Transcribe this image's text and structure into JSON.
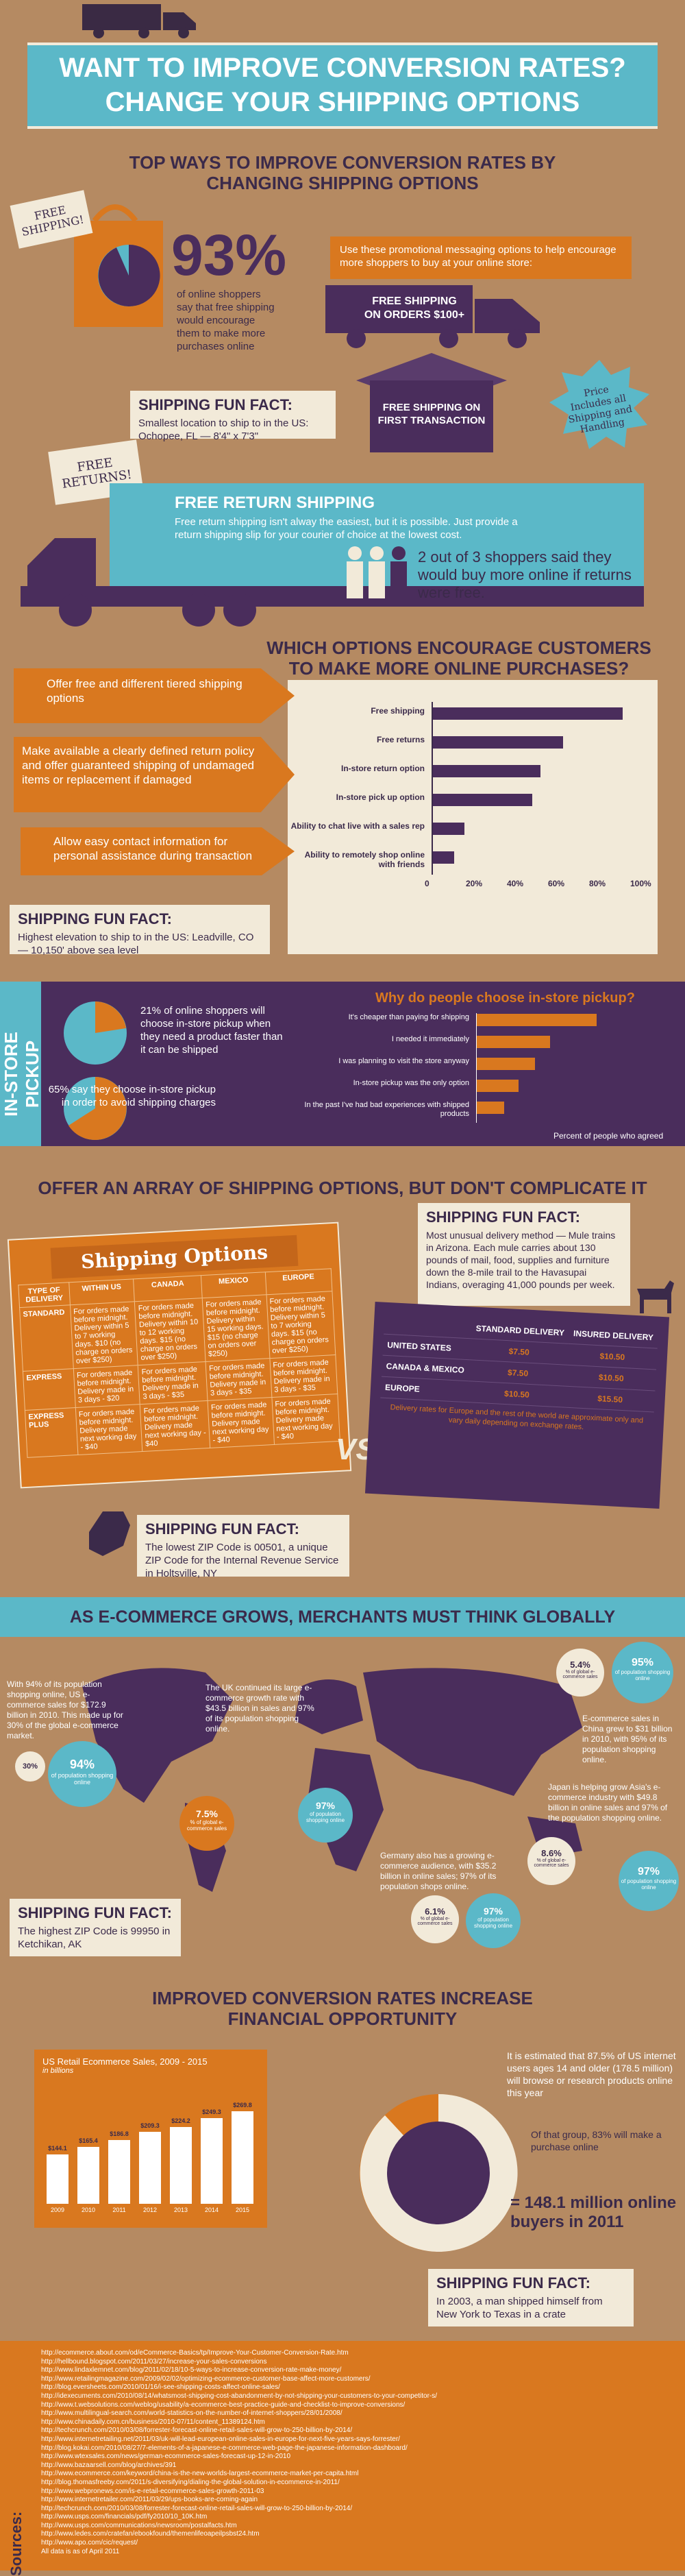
{
  "header": {
    "title_line1": "WANT TO IMPROVE CONVERSION RATES?",
    "title_line2": "CHANGE YOUR SHIPPING OPTIONS"
  },
  "top_ways": {
    "heading_line1": "TOP WAYS TO IMPROVE CONVERSION RATES BY",
    "heading_line2": "CHANGING SHIPPING OPTIONS",
    "free_shipping_tag": "FREE SHIPPING!",
    "stat_percent": "93%",
    "stat_text": "of online shoppers say that free shipping would encourage them to make more purchases online",
    "promo_intro": "Use these promotional messaging options to help encourage more shoppers to buy at your online store:",
    "truck_text": "FREE SHIPPING ON ORDERS $100+",
    "box_text": "FREE SHIPPING ON FIRST TRANSACTION",
    "price_includes": "Price Includes all Shipping and Handling"
  },
  "fact1": {
    "title": "SHIPPING FUN FACT:",
    "text": "Smallest location to ship to in the US: Ochopee, FL — 8'4\" x 7'3\""
  },
  "free_returns": {
    "tag": "FREE RETURNS!",
    "title": "FREE RETURN SHIPPING",
    "text": "Free return shipping isn't alway the easiest, but it is possible. Just provide a return shipping slip for your courier of choice at the lowest cost.",
    "stat": "2 out of 3 shoppers said they would buy more online if returns were free."
  },
  "options": {
    "heading_line1": "WHICH OPTIONS ENCOURAGE CUSTOMERS",
    "heading_line2": "TO MAKE MORE ONLINE PURCHASES?",
    "tips": [
      "Offer free and different tiered shipping options",
      "Make available a clearly defined return policy and offer guaranteed shipping of undamaged items or replacement if damaged",
      "Allow easy contact information for personal assistance during transaction"
    ]
  },
  "fact2": {
    "title": "SHIPPING FUN FACT:",
    "text": "Highest elevation to ship to in the US: Leadville, CO — 10,150' above sea level"
  },
  "instore": {
    "side_label": "IN-STORE PICKUP",
    "stat1": "21% of online shoppers will choose in-store pickup when they need a product faster than it can be shipped",
    "stat2": "65% say they choose in-store pickup in order to avoid shipping charges",
    "question": "Why do people choose in-store pickup?",
    "axis_title": "Percent of people who agreed"
  },
  "array": {
    "heading": "OFFER AN ARRAY OF SHIPPING OPTIONS, BUT DON'T COMPLICATE IT",
    "shipping_options_title": "Shipping Options",
    "cols": [
      "TYPE OF DELIVERY",
      "WITHIN US",
      "CANADA",
      "MEXICO",
      "EUROPE"
    ],
    "rows": [
      [
        "STANDARD",
        "For orders made before midnight. Delivery within 5 to 7 working days. $10 (no charge on orders over $250)",
        "For orders made before midnight. Delivery within 10 to 12 working days. $15 (no charge on orders over $250)",
        "For orders made before midnight. Delivery within 15 working days. $15 (no charge on orders over $250)",
        "For orders made before midnight. Delivery within 5 to 7 working days. $15 (no charge on orders over $250)"
      ],
      [
        "EXPRESS",
        "For orders made before midnight. Delivery made in 3 days - $20",
        "For orders made before midnight. Delivery made in 3 days - $35",
        "For orders made before midnight. Delivery made in 3 days - $35",
        "For orders made before midnight. Delivery made in 3 days - $35"
      ],
      [
        "EXPRESS PLUS",
        "For orders made before midnight. Delivery made next working day - $40",
        "For orders made before midnight. Delivery made next working day - $40",
        "For orders made before midnight. Delivery made next working day - $40",
        "For orders made before midnight. Delivery made next working day - $40"
      ]
    ],
    "vs": "VS.",
    "delivery_cols": [
      "",
      "STANDARD DELIVERY",
      "INSURED DELIVERY"
    ],
    "delivery_rows": [
      [
        "UNITED STATES",
        "$7.50",
        "$10.50"
      ],
      [
        "CANADA & MEXICO",
        "$7.50",
        "$10.50"
      ],
      [
        "EUROPE",
        "$10.50",
        "$15.50"
      ]
    ],
    "delivery_note": "Delivery rates for Europe and the rest of the world are approximate only and vary daily depending on exchange rates."
  },
  "fact3": {
    "title": "SHIPPING FUN FACT:",
    "text": "Most unusual delivery method — Mule trains in Arizona. Each mule carries about 130 pounds of mail, food, supplies and furniture down the 8-mile trail to the Havasupai Indians, overaging 41,000 pounds per week."
  },
  "fact4": {
    "title": "SHIPPING FUN FACT:",
    "text": "The lowest ZIP Code is 00501, a unique ZIP Code for the Internal Revenue Service in Holtsville, NY"
  },
  "global": {
    "heading": "AS E-COMMERCE GROWS, MERCHANTS MUST THINK GLOBALLY",
    "us_text": "With 94% of its population shopping online, US e-commerce sales for $172.9 billion in 2010. This made up for 30% of the global e-commerce market.",
    "us_pct1": "30%",
    "us_pct2": "94%",
    "us_pct2_label": "of population shopping online",
    "uk_text": "The UK continued its large e-commerce growth rate with $43.5 billion in sales and 97% of its population shopping online.",
    "uk_pct1": "7.5%",
    "uk_pct1_label": "% of global e-commerce sales",
    "uk_pct2": "97%",
    "uk_pct2_label": "of population shopping online",
    "china_text": "E-commerce sales in China grew to $31 billion in 2010, with 95% of its population shopping online.",
    "china_pct1": "5.4%",
    "china_pct1_label": "% of global e-commerce sales",
    "china_pct2": "95%",
    "china_pct2_label": "of population shopping online",
    "japan_text": "Japan is helping grow Asia's e-commerce industry with $49.8 billion in online sales and 97% of the population shopping online.",
    "japan_pct1": "8.6%",
    "japan_pct1_label": "% of global e-commerce sales",
    "japan_pct2": "97%",
    "japan_pct2_label": "of population shopping online",
    "germany_text": "Germany also has a growing e-commerce audience, with $35.2 billion in online sales; 97% of its population shops online.",
    "germany_pct1": "6.1%",
    "germany_pct1_label": "% of global e-commerce sales",
    "germany_pct2": "97%",
    "germany_pct2_label": "of population shopping online"
  },
  "fact5": {
    "title": "SHIPPING FUN FACT:",
    "text": "The highest ZIP Code is 99950 in Ketchikan, AK"
  },
  "financial": {
    "heading_line1": "IMPROVED CONVERSION RATES INCREASE",
    "heading_line2": "FINANCIAL OPPORTUNITY",
    "chart_title": "US Retail Ecommerce Sales, 2009 - 2015",
    "chart_subtitle": "in billions",
    "stat1": "It is estimated that 87.5% of US internet users ages 14 and older (178.5 million) will browse or research products online this year",
    "stat2": "Of that group, 83% will make a purchase online",
    "buyers": "= 148.1 million online buyers in 2011"
  },
  "fact6": {
    "title": "SHIPPING FUN FACT:",
    "text": "In 2003, a man shipped himself from New York to Texas in a crate"
  },
  "sources": {
    "label": "Sources:",
    "lines": [
      "http://ecommerce.about.com/od/eCommerce-Basics/tp/Improve-Your-Customer-Conversion-Rate.htm",
      "http://hellbound.blogspot.com/2011/03/27/increase-your-sales-conversions",
      "http://www.lindaxlemnet.com/blog/2011/02/18/10-5-ways-to-increase-conversion-rate-make-money/",
      "http://www.retailingmagazine.com/2009/02/02/optimizing-ecommerce-customer-base-affect-more-customers/",
      "http://blog.eversheets.com/2010/01/16/i-see-shipping-costs-affect-online-sales/",
      "http://idexecuments.com/2010/08/14/whatsmost-shipping-cost-abandonment-by-not-shipping-your-customers-to-your-competitor-s/",
      "http://www.t.websolutions.com/weblog/usability/a-ecommerce-best-practice-guide-and-checklist-to-improve-conversions/",
      "http://www.multilingual-search.com/world-statistics-on-the-number-of-internet-shoppers/28/01/2008/",
      "http://www.chinadaily.com.cn/business/2010-07/11/content_11389124.htm",
      "http://techcrunch.com/2010/03/08/forrester-forecast-online-retail-sales-will-grow-to-250-billion-by-2014/",
      "http://www.internetretailing.net/2011/03/uk-will-lead-european-online-sales-in-europe-for-next-five-years-says-forrester/",
      "http://blog.kokai.com/2010/08/27/7-elements-of-a-japanese-e-commerce-web-page-the-japanese-information-dashboard/",
      "http://www.wtexsales.com/news/german-ecommerce-sales-forecast-up-12-in-2010",
      "http://www.bazaarsell.com/blog/archives/391",
      "http://www.ecommerce.com/keyword/china-is-the-new-worlds-largest-ecommerce-market-per-capita.html",
      "http://blog.thomasfreeby.com/2011/s-diversifying/dialing-the-global-solution-in-ecommerce-in-2011/",
      "http://www.webpronews.com/is-e-retail-ecommerce-sales-growth-2011-03",
      "http://www.internetretailer.com/2011/03/29/ups-books-are-coming-again",
      "http://techcrunch.com/2010/03/08/forrester-forecast-online-retail-sales-will-grow-to-250-billion-by-2014/",
      "http://www.usps.com/financials/pdf/fy2010/10_10K.htm",
      "http://www.usps.com/communications/newsroom/postalfacts.htm",
      "http://www.ledes.com/cratefan/ebookfound/themenlifeoapeilpsbst24.htm",
      "http://www.apo.com/cic/request/",
      "All data is as of April 2011"
    ]
  },
  "chart_data": [
    {
      "type": "bar",
      "orientation": "horizontal",
      "title": "WHICH OPTIONS ENCOURAGE CUSTOMERS TO MAKE MORE ONLINE PURCHASES?",
      "categories": [
        "Free shipping",
        "Free returns",
        "In-store return option",
        "In-store pick up option",
        "Ability to chat live with a sales rep",
        "Ability to remotely shop online with friends"
      ],
      "values": [
        93,
        64,
        53,
        49,
        16,
        11
      ],
      "ticks": [
        "0",
        "20%",
        "40%",
        "60%",
        "80%",
        "100%"
      ],
      "xlim": [
        0,
        100
      ],
      "color": "#4a2d5c"
    },
    {
      "type": "bar",
      "orientation": "horizontal",
      "title": "Why do people choose in-store pickup?",
      "xlabel": "Percent of people who agreed",
      "categories": [
        "It's cheaper than paying for shipping",
        "I needed it immediately",
        "I was planning to visit the store anyway",
        "In-store pickup was the only option",
        "In the past I've had bad experiences with shipped products"
      ],
      "values": [
        65,
        40,
        32,
        23,
        15
      ],
      "xlim": [
        0,
        100
      ],
      "color": "#d9781f"
    },
    {
      "type": "bar",
      "title": "US Retail Ecommerce Sales, 2009 - 2015",
      "subtitle": "in billions",
      "categories": [
        "2009",
        "2010",
        "2011",
        "2012",
        "2013",
        "2014",
        "2015"
      ],
      "values": [
        144.1,
        165.4,
        186.8,
        209.3,
        224.2,
        249.3,
        269.8
      ],
      "labels": [
        "$144.1",
        "$165.4",
        "$186.8",
        "$209.3",
        "$224.2",
        "$249.3",
        "$269.8"
      ],
      "color": "#ffffff"
    },
    {
      "type": "pie",
      "title": "In-store pickup shares",
      "values": [
        21,
        65
      ],
      "labels": [
        "21%",
        "65%"
      ],
      "colors": [
        "#d9781f",
        "#5bb8c8"
      ]
    }
  ]
}
